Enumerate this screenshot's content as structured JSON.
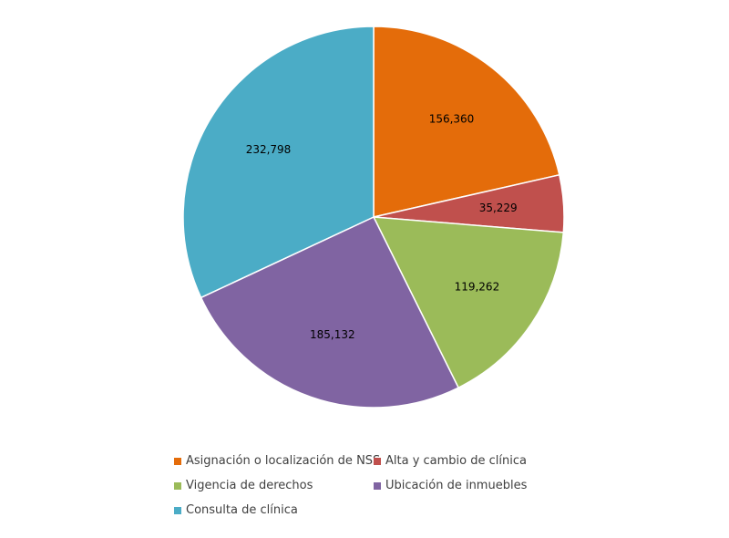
{
  "chart_data": {
    "type": "pie",
    "title": "",
    "legend_position": "bottom",
    "slices": [
      {
        "label": "Asignación o localización de NSS",
        "value": 156360,
        "display": "156,360",
        "color": "#E46C0A"
      },
      {
        "label": "Alta y cambio de clínica",
        "value": 35229,
        "display": "35,229",
        "color": "#C0504D"
      },
      {
        "label": "Vigencia de derechos",
        "value": 119262,
        "display": "119,262",
        "color": "#9BBB59"
      },
      {
        "label": "Ubicación de inmuebles",
        "value": 185132,
        "display": "185,132",
        "color": "#8064A2"
      },
      {
        "label": "Consulta de clínica",
        "value": 232798,
        "display": "232,798",
        "color": "#4BACC6"
      }
    ]
  }
}
